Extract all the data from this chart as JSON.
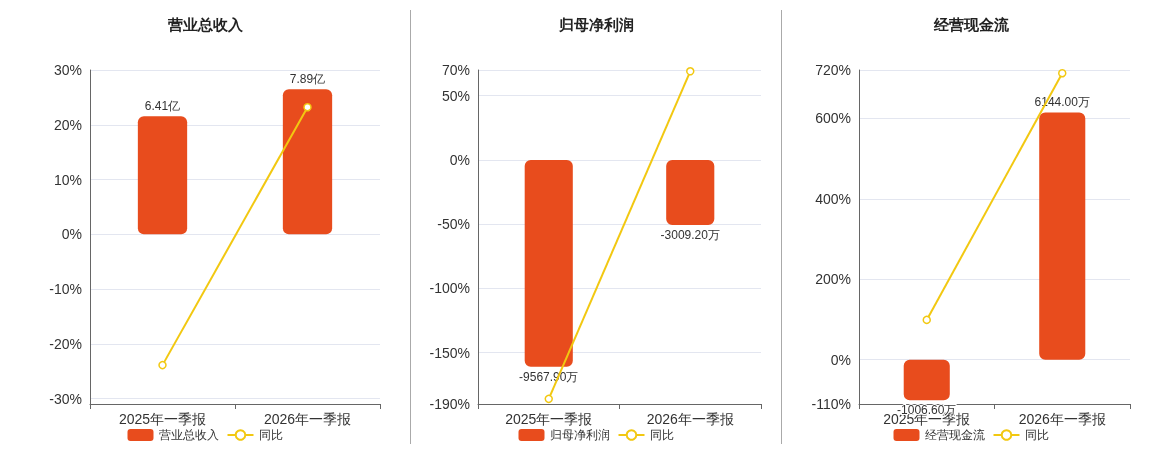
{
  "chart_data": [
    {
      "type": "bar",
      "title": "营业总收入",
      "categories": [
        "2025年一季报",
        "2026年一季报"
      ],
      "series": [
        {
          "name": "营业总收入",
          "axis": "y2",
          "color": "#e84c1d",
          "values": [
            6.41,
            7.89
          ],
          "value_labels": [
            "6.41亿",
            "7.89亿"
          ]
        },
        {
          "name": "同比",
          "type": "line",
          "color": "#f2c811",
          "values": [
            -23.9,
            23.2
          ]
        }
      ],
      "ylim": [
        -31,
        30
      ],
      "yticks": [
        {
          "value": -30,
          "label": "-30%"
        },
        {
          "value": -20,
          "label": "-20%"
        },
        {
          "value": -10,
          "label": "-10%"
        },
        {
          "value": 0,
          "label": "0%"
        },
        {
          "value": 10,
          "label": "10%"
        },
        {
          "value": 20,
          "label": "20%"
        },
        {
          "value": 30,
          "label": "30%"
        }
      ],
      "y2lim": [
        -9.23,
        8.93
      ],
      "grid": "y",
      "legend": "bottom",
      "marker": "circle"
    },
    {
      "type": "bar",
      "title": "归母净利润",
      "categories": [
        "2025年一季报",
        "2026年一季报"
      ],
      "series": [
        {
          "name": "归母净利润",
          "axis": "y2",
          "color": "#e84c1d",
          "values": [
            -9567.9,
            -3009.2
          ],
          "value_labels": [
            "-9567.90万",
            "-3009.20万"
          ]
        },
        {
          "name": "同比",
          "type": "line",
          "color": "#f2c811",
          "values": [
            -186,
            69
          ]
        }
      ],
      "ylim": [
        -190,
        70
      ],
      "yticks": [
        {
          "value": -190,
          "label": "-190%"
        },
        {
          "value": -150,
          "label": "-150%"
        },
        {
          "value": -100,
          "label": "-100%"
        },
        {
          "value": -50,
          "label": "-50%"
        },
        {
          "value": 0,
          "label": "0%"
        },
        {
          "value": 50,
          "label": "50%"
        },
        {
          "value": 70,
          "label": "70%"
        }
      ],
      "y2lim": [
        -11290,
        4160
      ],
      "grid": "y",
      "legend": "bottom",
      "marker": "circle"
    },
    {
      "type": "bar",
      "title": "经营现金流",
      "categories": [
        "2025年一季报",
        "2026年一季报"
      ],
      "series": [
        {
          "name": "经营现金流",
          "axis": "y2",
          "color": "#e84c1d",
          "values": [
            -1006.6,
            6144.0
          ],
          "value_labels": [
            "-1006.60万",
            "6144.00万"
          ]
        },
        {
          "name": "同比",
          "type": "line",
          "color": "#f2c811",
          "values": [
            99,
            712
          ]
        }
      ],
      "ylim": [
        -110,
        720
      ],
      "yticks": [
        {
          "value": -110,
          "label": "-110%"
        },
        {
          "value": 0,
          "label": "0%"
        },
        {
          "value": 200,
          "label": "200%"
        },
        {
          "value": 400,
          "label": "400%"
        },
        {
          "value": 600,
          "label": "600%"
        },
        {
          "value": 720,
          "label": "720%"
        }
      ],
      "y2lim": [
        -1100,
        7200
      ],
      "grid": "y",
      "legend": "bottom",
      "marker": "circle"
    }
  ]
}
